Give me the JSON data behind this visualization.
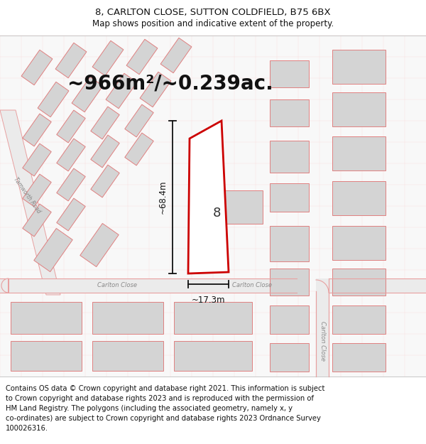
{
  "title_line1": "8, CARLTON CLOSE, SUTTON COLDFIELD, B75 6BX",
  "title_line2": "Map shows position and indicative extent of the property.",
  "area_text": "~966m²/~0.239ac.",
  "dim_height": "~68.4m",
  "dim_width": "~17.3m",
  "label_number": "8",
  "road_label_left": "Carlton Close",
  "road_label_right": "Carlton Close",
  "road_label_vertical": "Carlton Close",
  "footer_lines": [
    "Contains OS data © Crown copyright and database right 2021. This information is subject",
    "to Crown copyright and database rights 2023 and is reproduced with the permission of",
    "HM Land Registry. The polygons (including the associated geometry, namely x, y",
    "co-ordinates) are subject to Crown copyright and database rights 2023 Ordnance Survey",
    "100026316."
  ],
  "bg_color": "#ffffff",
  "road_fill": "#ebebeb",
  "road_edge": "#e8a0a0",
  "building_fill": "#d4d4d4",
  "building_edge": "#e08080",
  "plot_edge": "#cc0000",
  "plot_fill": "#ffffff",
  "dim_color": "#111111",
  "text_gray": "#888888",
  "title_fs": 9.5,
  "subtitle_fs": 8.5,
  "area_fs": 20,
  "footer_fs": 7.2,
  "road_label_fs": 6.0,
  "number_fs": 13
}
